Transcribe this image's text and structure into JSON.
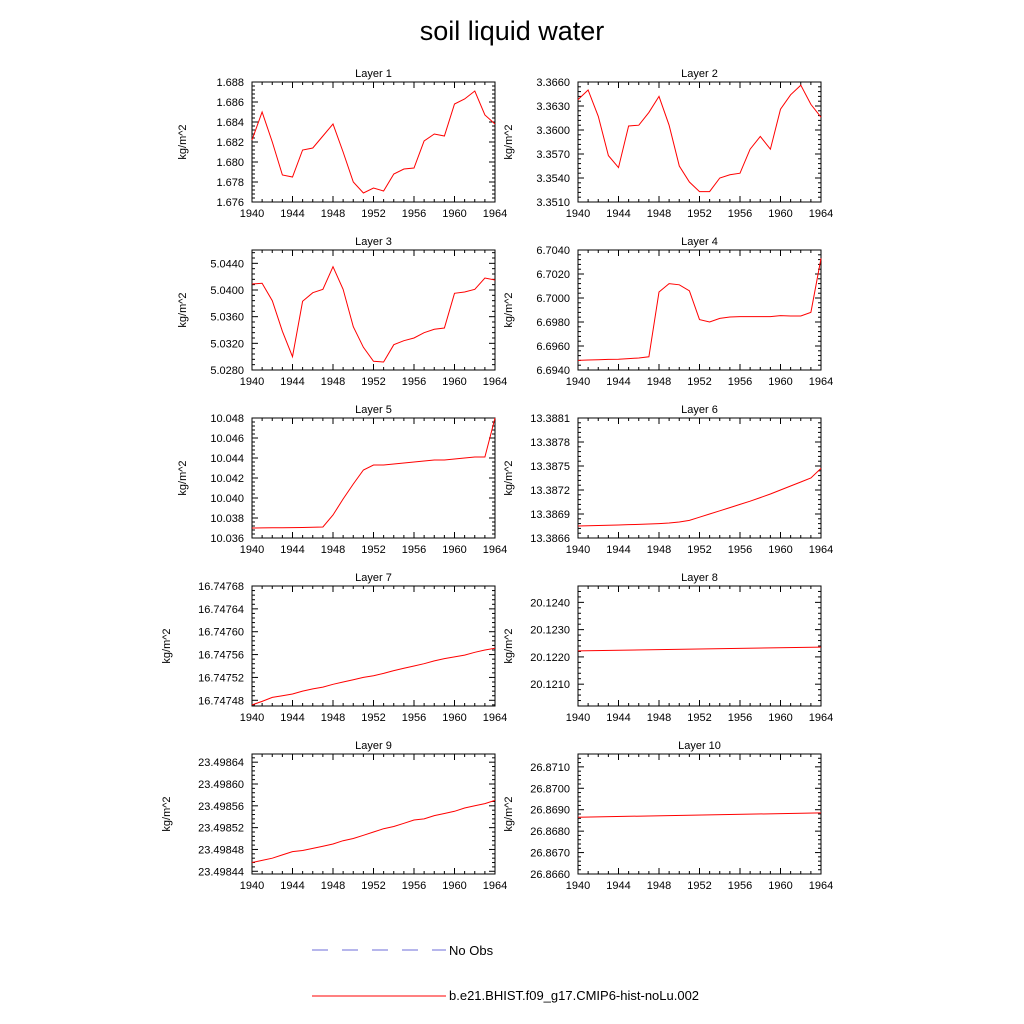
{
  "figure": {
    "title": "soil liquid water",
    "legend": {
      "placement": "bottom-center",
      "entries": [
        {
          "label": "No Obs",
          "color": "#6c6cd8",
          "style": "dashed"
        },
        {
          "label": "b.e21.BHIST.f09_g17.CMIP6-hist-noLu.002",
          "color": "#ff0000",
          "style": "solid"
        }
      ]
    }
  },
  "chart_data": [
    {
      "type": "line",
      "title": "Layer 1",
      "ylabel": "kg/m^2",
      "xlim": [
        1940,
        1964
      ],
      "xticks": [
        "1940",
        "1944",
        "1948",
        "1952",
        "1956",
        "1960",
        "1964"
      ],
      "ylim": [
        1.676,
        1.688
      ],
      "yticks": [
        "1.676",
        "1.678",
        "1.680",
        "1.682",
        "1.684",
        "1.686",
        "1.688"
      ],
      "series": [
        {
          "name": "b.e21.BHIST.f09_g17.CMIP6-hist-noLu.002",
          "color": "#ff0000",
          "x": [
            1940,
            1941,
            1942,
            1943,
            1944,
            1945,
            1946,
            1947,
            1948,
            1949,
            1950,
            1951,
            1952,
            1953,
            1954,
            1955,
            1956,
            1957,
            1958,
            1959,
            1960,
            1961,
            1962,
            1963,
            1964
          ],
          "y": [
            1.6822,
            1.685,
            1.682,
            1.6787,
            1.6785,
            1.6812,
            1.6814,
            1.6826,
            1.6838,
            1.681,
            1.678,
            1.6769,
            1.6774,
            1.6771,
            1.6788,
            1.6793,
            1.6794,
            1.6821,
            1.6828,
            1.6826,
            1.6858,
            1.6863,
            1.6871,
            1.6847,
            1.6838
          ]
        }
      ]
    },
    {
      "type": "line",
      "title": "Layer 2",
      "ylabel": "kg/m^2",
      "xlim": [
        1940,
        1964
      ],
      "xticks": [
        "1940",
        "1944",
        "1948",
        "1952",
        "1956",
        "1960",
        "1964"
      ],
      "ylim": [
        3.351,
        3.366
      ],
      "yticks": [
        "3.3510",
        "3.3540",
        "3.3570",
        "3.3600",
        "3.3630",
        "3.3660"
      ],
      "series": [
        {
          "name": "b.e21.BHIST.f09_g17.CMIP6-hist-noLu.002",
          "color": "#ff0000",
          "x": [
            1940,
            1941,
            1942,
            1943,
            1944,
            1945,
            1946,
            1947,
            1948,
            1949,
            1950,
            1951,
            1952,
            1953,
            1954,
            1955,
            1956,
            1957,
            1958,
            1959,
            1960,
            1961,
            1962,
            1963,
            1964
          ],
          "y": [
            3.3638,
            3.365,
            3.3617,
            3.3568,
            3.3553,
            3.3605,
            3.3606,
            3.3622,
            3.3642,
            3.3606,
            3.3555,
            3.3535,
            3.3523,
            3.3523,
            3.354,
            3.3544,
            3.3546,
            3.3576,
            3.3592,
            3.3576,
            3.3626,
            3.3644,
            3.3656,
            3.3632,
            3.3616
          ]
        }
      ]
    },
    {
      "type": "line",
      "title": "Layer 3",
      "ylabel": "kg/m^2",
      "xlim": [
        1940,
        1964
      ],
      "xticks": [
        "1940",
        "1944",
        "1948",
        "1952",
        "1956",
        "1960",
        "1964"
      ],
      "ylim": [
        5.028,
        5.046
      ],
      "yticks": [
        "5.0280",
        "5.0320",
        "5.0360",
        "5.0400",
        "5.0440"
      ],
      "series": [
        {
          "name": "b.e21.BHIST.f09_g17.CMIP6-hist-noLu.002",
          "color": "#ff0000",
          "x": [
            1940,
            1941,
            1942,
            1943,
            1944,
            1945,
            1946,
            1947,
            1948,
            1949,
            1950,
            1951,
            1952,
            1953,
            1954,
            1955,
            1956,
            1957,
            1958,
            1959,
            1960,
            1961,
            1962,
            1963,
            1964
          ],
          "y": [
            5.0409,
            5.041,
            5.0384,
            5.0338,
            5.03,
            5.0383,
            5.0396,
            5.0401,
            5.0435,
            5.0401,
            5.0345,
            5.0314,
            5.0293,
            5.0292,
            5.0318,
            5.0324,
            5.0328,
            5.0336,
            5.0341,
            5.0343,
            5.0395,
            5.0397,
            5.0401,
            5.0418,
            5.0415
          ]
        }
      ]
    },
    {
      "type": "line",
      "title": "Layer 4",
      "ylabel": "kg/m^2",
      "xlim": [
        1940,
        1964
      ],
      "xticks": [
        "1940",
        "1944",
        "1948",
        "1952",
        "1956",
        "1960",
        "1964"
      ],
      "ylim": [
        6.694,
        6.704
      ],
      "yticks": [
        "6.6940",
        "6.6960",
        "6.6980",
        "6.7000",
        "6.7020",
        "6.7040"
      ],
      "series": [
        {
          "name": "b.e21.BHIST.f09_g17.CMIP6-hist-noLu.002",
          "color": "#ff0000",
          "x": [
            1940,
            1941,
            1942,
            1943,
            1944,
            1945,
            1946,
            1947,
            1948,
            1949,
            1950,
            1951,
            1952,
            1953,
            1954,
            1955,
            1956,
            1957,
            1958,
            1959,
            1960,
            1961,
            1962,
            1963,
            1964
          ],
          "y": [
            6.6948,
            6.69483,
            6.69486,
            6.69488,
            6.6949,
            6.69495,
            6.695,
            6.6951,
            6.7005,
            6.7012,
            6.7011,
            6.7006,
            6.6982,
            6.698,
            6.6983,
            6.69842,
            6.69845,
            6.69845,
            6.69845,
            6.69845,
            6.69853,
            6.6985,
            6.6985,
            6.6988,
            6.7033
          ]
        }
      ]
    },
    {
      "type": "line",
      "title": "Layer 5",
      "ylabel": "kg/m^2",
      "xlim": [
        1940,
        1964
      ],
      "xticks": [
        "1940",
        "1944",
        "1948",
        "1952",
        "1956",
        "1960",
        "1964"
      ],
      "ylim": [
        10.036,
        10.048
      ],
      "yticks": [
        "10.036",
        "10.038",
        "10.040",
        "10.042",
        "10.044",
        "10.046",
        "10.048"
      ],
      "series": [
        {
          "name": "b.e21.BHIST.f09_g17.CMIP6-hist-noLu.002",
          "color": "#ff0000",
          "x": [
            1940,
            1941,
            1942,
            1943,
            1944,
            1945,
            1946,
            1947,
            1948,
            1949,
            1950,
            1951,
            1952,
            1953,
            1954,
            1955,
            1956,
            1957,
            1958,
            1959,
            1960,
            1961,
            1962,
            1963,
            1964
          ],
          "y": [
            10.037,
            10.03701,
            10.03702,
            10.03703,
            10.03704,
            10.03705,
            10.03707,
            10.0371,
            10.0383,
            10.0399,
            10.0414,
            10.0428,
            10.0433,
            10.0433,
            10.0434,
            10.0435,
            10.0436,
            10.0437,
            10.0438,
            10.0438,
            10.0439,
            10.044,
            10.0441,
            10.0441,
            10.048
          ]
        }
      ]
    },
    {
      "type": "line",
      "title": "Layer 6",
      "ylabel": "kg/m^2",
      "xlim": [
        1940,
        1964
      ],
      "xticks": [
        "1940",
        "1944",
        "1948",
        "1952",
        "1956",
        "1960",
        "1964"
      ],
      "ylim": [
        13.3866,
        13.3881
      ],
      "yticks": [
        "13.3866",
        "13.3869",
        "13.3872",
        "13.3875",
        "13.3878",
        "13.3881"
      ],
      "series": [
        {
          "name": "b.e21.BHIST.f09_g17.CMIP6-hist-noLu.002",
          "color": "#ff0000",
          "x": [
            1940,
            1941,
            1942,
            1943,
            1944,
            1945,
            1946,
            1947,
            1948,
            1949,
            1950,
            1951,
            1952,
            1953,
            1954,
            1955,
            1956,
            1957,
            1958,
            1959,
            1960,
            1961,
            1962,
            1963,
            1964
          ],
          "y": [
            13.38675,
            13.386753,
            13.386756,
            13.38676,
            13.386763,
            13.386767,
            13.38677,
            13.386775,
            13.38678,
            13.386788,
            13.3868,
            13.38682,
            13.38686,
            13.3869,
            13.38694,
            13.38698,
            13.38702,
            13.38706,
            13.387105,
            13.38715,
            13.3872,
            13.38725,
            13.3873,
            13.38735,
            13.38747
          ]
        }
      ]
    },
    {
      "type": "line",
      "title": "Layer 7",
      "ylabel": "kg/m^2",
      "xlim": [
        1940,
        1964
      ],
      "xticks": [
        "1940",
        "1944",
        "1948",
        "1952",
        "1956",
        "1960",
        "1964"
      ],
      "ylim": [
        16.74747,
        16.74768
      ],
      "yticks": [
        "16.74748",
        "16.74752",
        "16.74756",
        "16.74760",
        "16.74764",
        "16.74768"
      ],
      "series": [
        {
          "name": "b.e21.BHIST.f09_g17.CMIP6-hist-noLu.002",
          "color": "#ff0000",
          "x": [
            1940,
            1941,
            1942,
            1943,
            1944,
            1945,
            1946,
            1947,
            1948,
            1949,
            1950,
            1951,
            1952,
            1953,
            1954,
            1955,
            1956,
            1957,
            1958,
            1959,
            1960,
            1961,
            1962,
            1963,
            1964
          ],
          "y": [
            16.747472,
            16.747478,
            16.747485,
            16.747488,
            16.747491,
            16.747496,
            16.7475,
            16.747503,
            16.747508,
            16.747512,
            16.747516,
            16.74752,
            16.747523,
            16.747527,
            16.747532,
            16.747536,
            16.74754,
            16.747544,
            16.747549,
            16.747553,
            16.747556,
            16.747559,
            16.747564,
            16.747568,
            16.747571
          ]
        }
      ]
    },
    {
      "type": "line",
      "title": "Layer 8",
      "ylabel": "kg/m^2",
      "xlim": [
        1940,
        1964
      ],
      "xticks": [
        "1940",
        "1944",
        "1948",
        "1952",
        "1956",
        "1960",
        "1964"
      ],
      "ylim": [
        20.1202,
        20.1246
      ],
      "yticks": [
        "20.1210",
        "20.1220",
        "20.1230",
        "20.1240"
      ],
      "series": [
        {
          "name": "b.e21.BHIST.f09_g17.CMIP6-hist-noLu.002",
          "color": "#ff0000",
          "x": [
            1940,
            1964
          ],
          "y": [
            20.12222,
            20.12236
          ]
        }
      ]
    },
    {
      "type": "line",
      "title": "Layer 9",
      "ylabel": "kg/m^2",
      "xlim": [
        1940,
        1964
      ],
      "xticks": [
        "1940",
        "1944",
        "1948",
        "1952",
        "1956",
        "1960",
        "1964"
      ],
      "ylim": [
        23.498435,
        23.498655
      ],
      "yticks": [
        "23.49844",
        "23.49848",
        "23.49852",
        "23.49856",
        "23.49860",
        "23.49864"
      ],
      "series": [
        {
          "name": "b.e21.BHIST.f09_g17.CMIP6-hist-noLu.002",
          "color": "#ff0000",
          "x": [
            1940,
            1941,
            1942,
            1943,
            1944,
            1945,
            1946,
            1947,
            1948,
            1949,
            1950,
            1951,
            1952,
            1953,
            1954,
            1955,
            1956,
            1957,
            1958,
            1959,
            1960,
            1961,
            1962,
            1963,
            1964
          ],
          "y": [
            23.498456,
            23.49846,
            23.498464,
            23.49847,
            23.498476,
            23.498478,
            23.498482,
            23.498486,
            23.49849,
            23.498496,
            23.4985,
            23.498506,
            23.498512,
            23.498518,
            23.498522,
            23.498528,
            23.498534,
            23.498536,
            23.498542,
            23.498546,
            23.49855,
            23.498556,
            23.49856,
            23.498564,
            23.49857
          ]
        }
      ]
    },
    {
      "type": "line",
      "title": "Layer 10",
      "ylabel": "kg/m^2",
      "xlim": [
        1940,
        1964
      ],
      "xticks": [
        "1940",
        "1944",
        "1948",
        "1952",
        "1956",
        "1960",
        "1964"
      ],
      "ylim": [
        26.866,
        26.8716
      ],
      "yticks": [
        "26.8660",
        "26.8670",
        "26.8680",
        "26.8690",
        "26.8700",
        "26.8710"
      ],
      "series": [
        {
          "name": "b.e21.BHIST.f09_g17.CMIP6-hist-noLu.002",
          "color": "#ff0000",
          "x": [
            1940,
            1964
          ],
          "y": [
            26.86865,
            26.86885
          ]
        }
      ]
    }
  ]
}
